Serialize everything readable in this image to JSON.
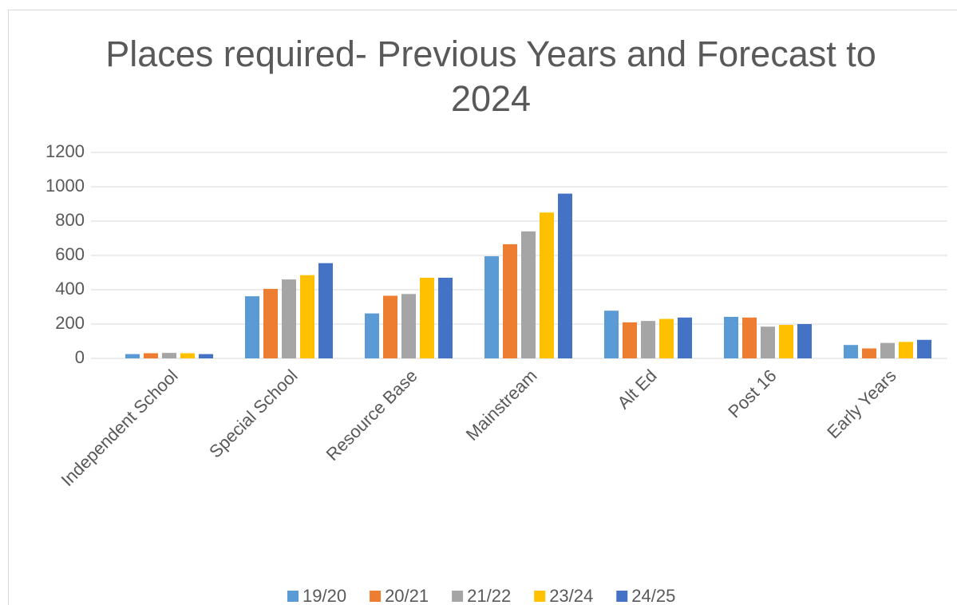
{
  "chart_data": {
    "type": "bar",
    "title": "Places required- Previous Years and Forecast to 2024",
    "categories": [
      "Independent School",
      "Special School",
      "Resource Base",
      "Mainstream",
      "Alt Ed",
      "Post 16",
      "Early Years"
    ],
    "series": [
      {
        "name": "19/20",
        "color": "#5b9bd5",
        "values": [
          25,
          362,
          262,
          595,
          278,
          242,
          78
        ]
      },
      {
        "name": "20/21",
        "color": "#ed7d31",
        "values": [
          30,
          405,
          365,
          665,
          210,
          238,
          58
        ]
      },
      {
        "name": "21/22",
        "color": "#a5a5a5",
        "values": [
          32,
          460,
          375,
          740,
          218,
          185,
          90
        ]
      },
      {
        "name": "23/24",
        "color": "#ffc000",
        "values": [
          30,
          485,
          470,
          850,
          230,
          195,
          96
        ]
      },
      {
        "name": "24/25",
        "color": "#4472c4",
        "values": [
          25,
          555,
          470,
          960,
          238,
          200,
          108
        ]
      }
    ],
    "ylim": [
      0,
      1200
    ],
    "yticks": [
      0,
      200,
      400,
      600,
      800,
      1000,
      1200
    ],
    "grid": true,
    "legend": "bottom"
  }
}
